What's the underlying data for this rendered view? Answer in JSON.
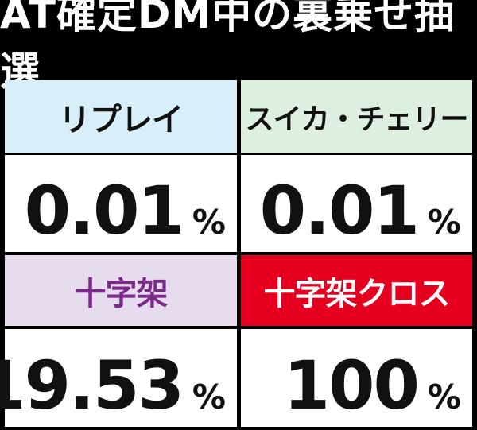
{
  "title": "AT確定DM中の裏乗せ抽選",
  "table": {
    "cells": [
      {
        "label": "リプレイ",
        "value": "0.01",
        "unit": "%"
      },
      {
        "label": "スイカ・チェリー",
        "value": "0.01",
        "unit": "%"
      },
      {
        "label": "十字架",
        "value": "19.53",
        "unit": "%"
      },
      {
        "label": "十字架クロス",
        "value": "100",
        "unit": "%"
      }
    ]
  }
}
